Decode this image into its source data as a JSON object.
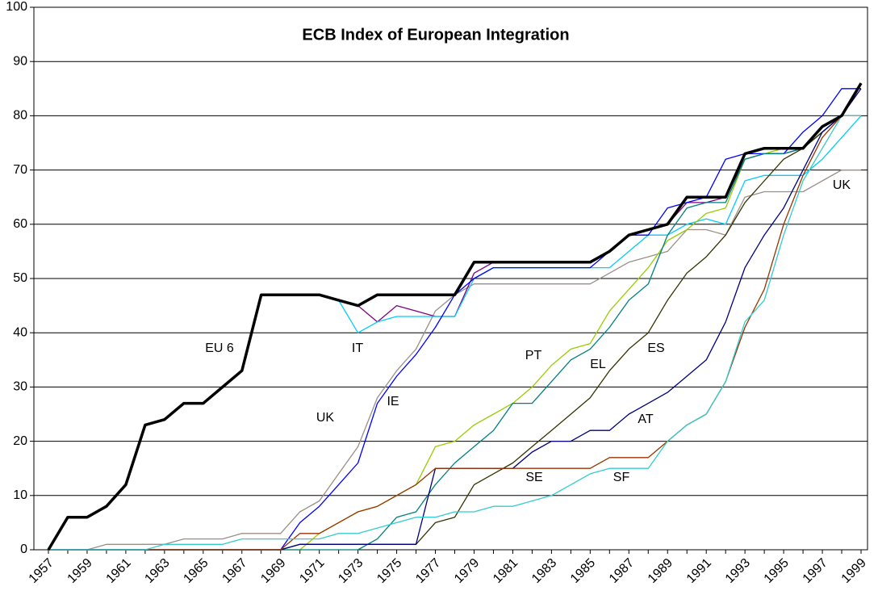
{
  "chart_data": {
    "type": "line",
    "title": "ECB Index of European Integration",
    "categories": [
      "1957",
      null,
      "1959",
      null,
      "1961",
      null,
      "1963",
      null,
      "1965",
      null,
      "1967",
      null,
      "1969",
      null,
      "1971",
      null,
      "1973",
      null,
      "1975",
      null,
      "1977",
      null,
      "1979",
      null,
      "1981",
      null,
      "1983",
      null,
      "1985",
      null,
      "1987",
      null,
      "1989",
      null,
      "1991",
      null,
      "1993",
      null,
      "1995",
      null,
      "1997",
      null,
      "1999"
    ],
    "ylim": [
      0,
      100
    ],
    "yticks": [
      0,
      10,
      20,
      30,
      40,
      50,
      60,
      70,
      80,
      90,
      100
    ],
    "grid": true,
    "series": [
      {
        "color": "#9a8f88",
        "values": [
          0,
          0,
          0,
          1,
          1,
          1,
          1,
          2,
          2,
          2,
          3,
          3,
          3,
          7,
          9,
          14,
          19,
          28,
          33,
          37,
          44,
          47,
          49,
          49,
          49,
          49,
          49,
          49,
          49,
          51,
          53,
          54,
          55,
          59,
          59,
          58,
          65,
          66,
          66,
          66,
          68,
          70,
          70
        ]
      },
      {
        "color": "#800080",
        "values": [
          0,
          6,
          6,
          8,
          12,
          23,
          24,
          27,
          27,
          30,
          33,
          47,
          47,
          47,
          47,
          46,
          45,
          42,
          45,
          44,
          43,
          43,
          51,
          53,
          53,
          53,
          53,
          53,
          53,
          55,
          58,
          59,
          60,
          64,
          64,
          65,
          72,
          73,
          73,
          74,
          77,
          80,
          86
        ]
      },
      {
        "color": "#00ccff",
        "values": [
          null,
          null,
          null,
          null,
          null,
          null,
          null,
          null,
          null,
          null,
          null,
          null,
          null,
          null,
          null,
          46,
          40,
          42,
          43,
          43,
          43,
          43,
          50,
          52,
          52,
          52,
          52,
          52,
          52,
          52,
          55,
          58,
          58,
          60,
          61,
          60,
          68,
          69,
          69,
          69,
          72,
          76,
          80
        ]
      },
      {
        "color": "#0000ff",
        "values": [
          0,
          0,
          0,
          0,
          0,
          0,
          0,
          0,
          0,
          0,
          0,
          0,
          0,
          5,
          8,
          12,
          16,
          27,
          32,
          36,
          41,
          47,
          50,
          52,
          52,
          52,
          52,
          52,
          52,
          55,
          58,
          58,
          63,
          64,
          65,
          72,
          73,
          73,
          73,
          77,
          80,
          85,
          85
        ]
      },
      {
        "color": "#99cc00",
        "values": [
          0,
          0,
          0,
          0,
          0,
          0,
          0,
          0,
          0,
          0,
          0,
          0,
          0,
          0,
          3,
          5,
          7,
          8,
          10,
          12,
          19,
          20,
          23,
          25,
          27,
          30,
          34,
          37,
          38,
          44,
          48,
          52,
          57,
          59,
          62,
          63,
          72,
          73,
          74,
          74,
          77,
          80,
          86
        ]
      },
      {
        "color": "#008080",
        "values": [
          0,
          0,
          0,
          0,
          0,
          0,
          0,
          0,
          0,
          0,
          0,
          0,
          0,
          0,
          0,
          0,
          0,
          2,
          6,
          7,
          12,
          16,
          19,
          22,
          27,
          27,
          31,
          35,
          37,
          41,
          46,
          49,
          58,
          63,
          64,
          64,
          72,
          73,
          73,
          74,
          77,
          80,
          86
        ]
      },
      {
        "color": "#333300",
        "values": [
          0,
          0,
          0,
          0,
          0,
          0,
          0,
          0,
          0,
          0,
          0,
          0,
          0,
          1,
          1,
          1,
          1,
          1,
          1,
          1,
          5,
          6,
          12,
          14,
          16,
          19,
          22,
          25,
          28,
          33,
          37,
          40,
          46,
          51,
          54,
          58,
          64,
          68,
          72,
          74,
          77,
          80,
          86
        ]
      },
      {
        "color": "#000080",
        "values": [
          0,
          0,
          0,
          0,
          0,
          0,
          0,
          0,
          0,
          0,
          0,
          0,
          0,
          1,
          1,
          1,
          1,
          1,
          1,
          1,
          15,
          15,
          15,
          15,
          15,
          18,
          20,
          20,
          22,
          22,
          25,
          27,
          29,
          32,
          35,
          42,
          52,
          58,
          63,
          70,
          77,
          80,
          85
        ]
      },
      {
        "color": "#993300",
        "values": [
          0,
          0,
          0,
          0,
          0,
          0,
          0,
          0,
          0,
          0,
          0,
          0,
          0,
          3,
          3,
          5,
          7,
          8,
          10,
          12,
          15,
          15,
          15,
          15,
          15,
          15,
          15,
          15,
          15,
          17,
          17,
          17,
          20,
          23,
          25,
          31,
          41,
          48,
          60,
          69,
          76,
          80,
          80
        ]
      },
      {
        "color": "#33cccc",
        "values": [
          0,
          0,
          0,
          0,
          0,
          0,
          1,
          1,
          1,
          1,
          2,
          2,
          2,
          2,
          2,
          3,
          3,
          4,
          5,
          6,
          6,
          7,
          7,
          8,
          8,
          9,
          10,
          12,
          14,
          15,
          15,
          15,
          20,
          23,
          25,
          31,
          42,
          46,
          58,
          68,
          74,
          80,
          80
        ]
      },
      {
        "color": "#000000",
        "width": 3.5,
        "values": [
          0,
          6,
          6,
          8,
          12,
          23,
          24,
          27,
          27,
          30,
          33,
          47,
          47,
          47,
          47,
          46,
          45,
          47,
          47,
          47,
          47,
          47,
          53,
          53,
          53,
          53,
          53,
          53,
          53,
          55,
          58,
          59,
          60,
          65,
          65,
          65,
          73,
          74,
          74,
          74,
          78,
          80,
          86
        ]
      }
    ],
    "annotations": [
      "EU 6",
      "IT",
      "UK",
      "IE",
      "PT",
      "EL",
      "ES",
      "AT",
      "SE",
      "SF",
      "UK"
    ]
  }
}
